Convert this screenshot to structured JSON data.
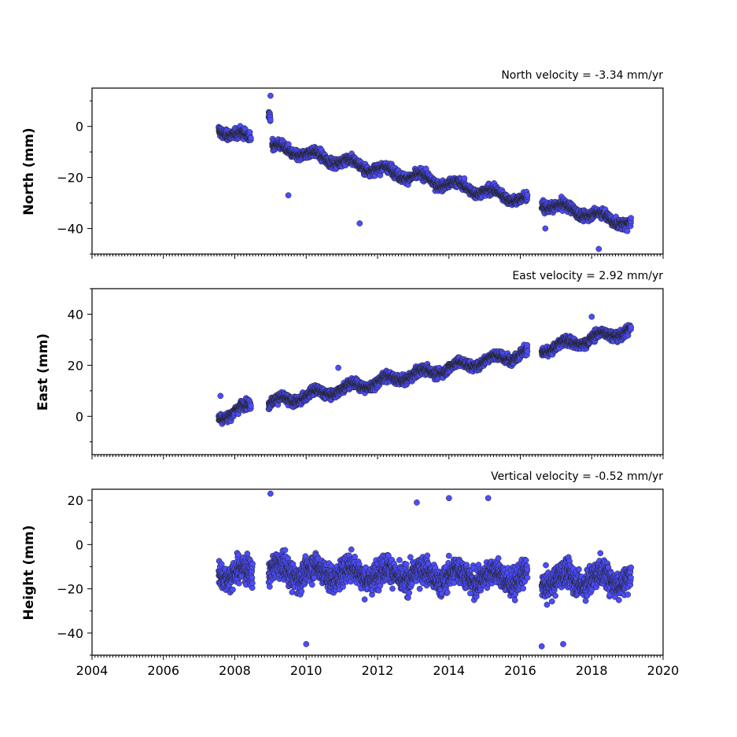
{
  "chart_data": [
    {
      "type": "scatter",
      "title": "North velocity = -3.34 mm/yr",
      "ylabel": "North (mm)",
      "xlabel": "",
      "xlim": [
        2004,
        2020
      ],
      "ylim": [
        -50,
        15
      ],
      "yticks": [
        "0",
        "−20",
        "−40"
      ],
      "grid": false,
      "marker_color": "#4c4cff",
      "marker_edge": "#222222",
      "series": [
        {
          "segments": [
            {
              "t0": 2007.55,
              "t1": 2008.45,
              "y0": -1,
              "y1": -5
            },
            {
              "t0": 2008.95,
              "t1": 2009.0,
              "y0": 5,
              "y1": 3
            },
            {
              "t0": 2009.05,
              "t1": 2016.2,
              "y0": -8,
              "y1": -29
            },
            {
              "t0": 2016.6,
              "t1": 2019.1,
              "y0": -30,
              "y1": -38
            }
          ],
          "outliers": [
            [
              2009.0,
              12
            ],
            [
              2009.5,
              -27
            ],
            [
              2011.5,
              -38
            ],
            [
              2016.7,
              -40
            ],
            [
              2018.2,
              -48
            ],
            [
              2019.0,
              -41
            ]
          ]
        }
      ]
    },
    {
      "type": "scatter",
      "title": "East velocity = 2.92 mm/yr",
      "ylabel": "East (mm)",
      "xlabel": "",
      "xlim": [
        2004,
        2020
      ],
      "ylim": [
        -15,
        50
      ],
      "yticks": [
        "40",
        "20",
        "0"
      ],
      "grid": false,
      "marker_color": "#4c4cff",
      "marker_edge": "#222222",
      "series": [
        {
          "segments": [
            {
              "t0": 2007.55,
              "t1": 2008.45,
              "y0": 0,
              "y1": 4
            },
            {
              "t0": 2008.95,
              "t1": 2016.2,
              "y0": 5,
              "y1": 25
            },
            {
              "t0": 2016.6,
              "t1": 2019.1,
              "y0": 26,
              "y1": 34
            }
          ],
          "outliers": [
            [
              2007.6,
              8
            ],
            [
              2010.9,
              19
            ],
            [
              2018.0,
              39
            ]
          ]
        }
      ]
    },
    {
      "type": "scatter",
      "title": "Vertical velocity = -0.52 mm/yr",
      "ylabel": "Height (mm)",
      "xlabel": "",
      "xlim": [
        2004,
        2020
      ],
      "ylim": [
        -50,
        25
      ],
      "xticks": [
        "2004",
        "2006",
        "2008",
        "2010",
        "2012",
        "2014",
        "2016",
        "2018",
        "2020"
      ],
      "yticks": [
        "20",
        "0",
        "−20",
        "−40"
      ],
      "grid": false,
      "marker_color": "#4c4cff",
      "marker_edge": "#222222",
      "series": [
        {
          "segments": [
            {
              "t0": 2007.55,
              "t1": 2008.5,
              "y0": -12,
              "y1": -14
            },
            {
              "t0": 2008.95,
              "t1": 2016.2,
              "y0": -12,
              "y1": -15
            },
            {
              "t0": 2016.6,
              "t1": 2019.1,
              "y0": -16,
              "y1": -15
            }
          ],
          "outliers": [
            [
              2009.0,
              23
            ],
            [
              2010.0,
              -45
            ],
            [
              2013.1,
              19
            ],
            [
              2014.0,
              21
            ],
            [
              2015.1,
              21
            ],
            [
              2016.6,
              -46
            ],
            [
              2017.2,
              -45
            ]
          ]
        }
      ]
    }
  ]
}
